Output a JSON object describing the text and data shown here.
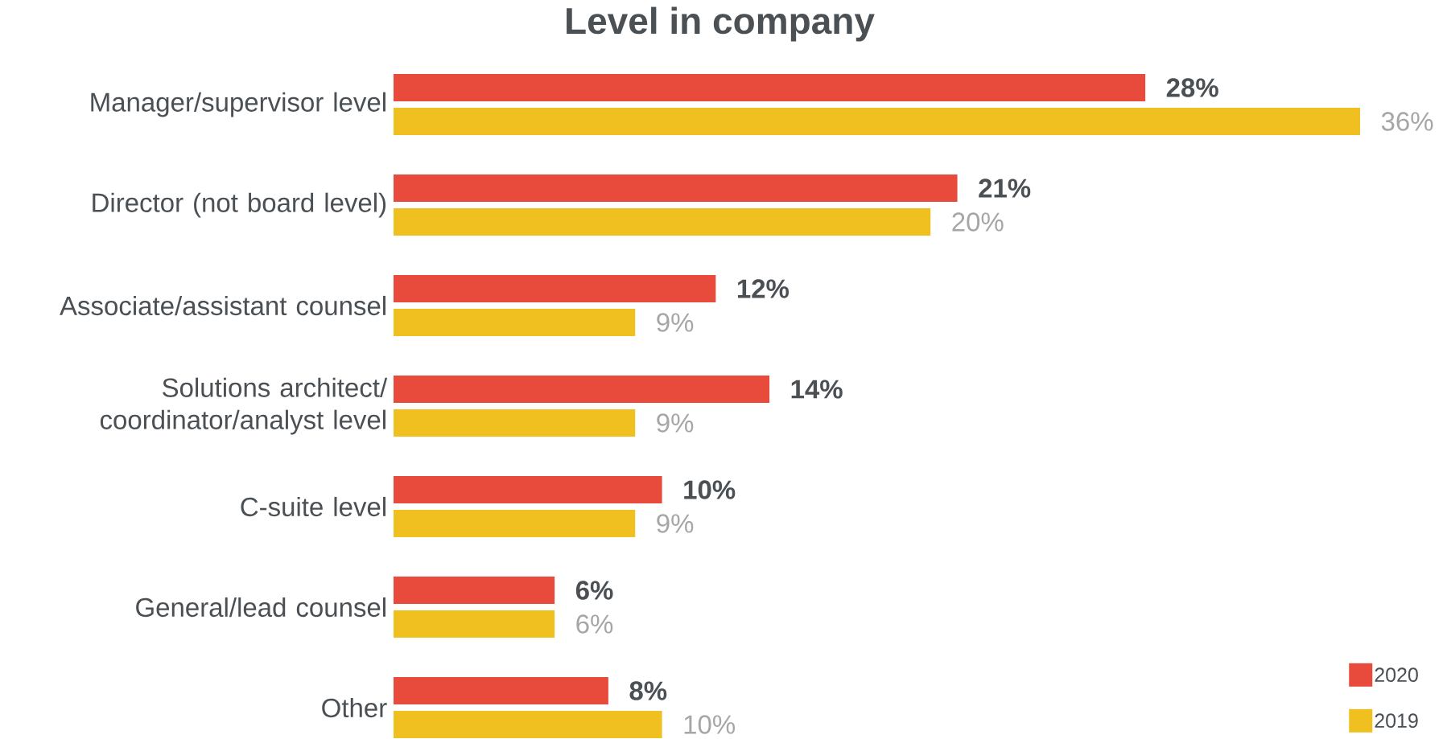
{
  "chart_data": {
    "type": "bar",
    "orientation": "horizontal",
    "title": "Level in company",
    "categories": [
      "Manager/supervisor level",
      "Director (not board level)",
      "Associate/assistant counsel",
      "Solutions architect/ coordinator/analyst level",
      "C-suite level",
      "General/lead counsel",
      "Other"
    ],
    "series": [
      {
        "name": "2020",
        "color": "#e84a3c",
        "values": [
          28,
          21,
          12,
          14,
          10,
          6,
          8
        ],
        "value_labels": [
          "28%",
          "21%",
          "12%",
          "14%",
          "10%",
          "6%",
          "8%"
        ]
      },
      {
        "name": "2019",
        "color": "#efc020",
        "values": [
          36,
          20,
          9,
          9,
          9,
          6,
          10
        ],
        "value_labels": [
          "36%",
          "20%",
          "9%",
          "9%",
          "9%",
          "6%",
          "10%"
        ]
      }
    ],
    "legend": "bottom right"
  }
}
